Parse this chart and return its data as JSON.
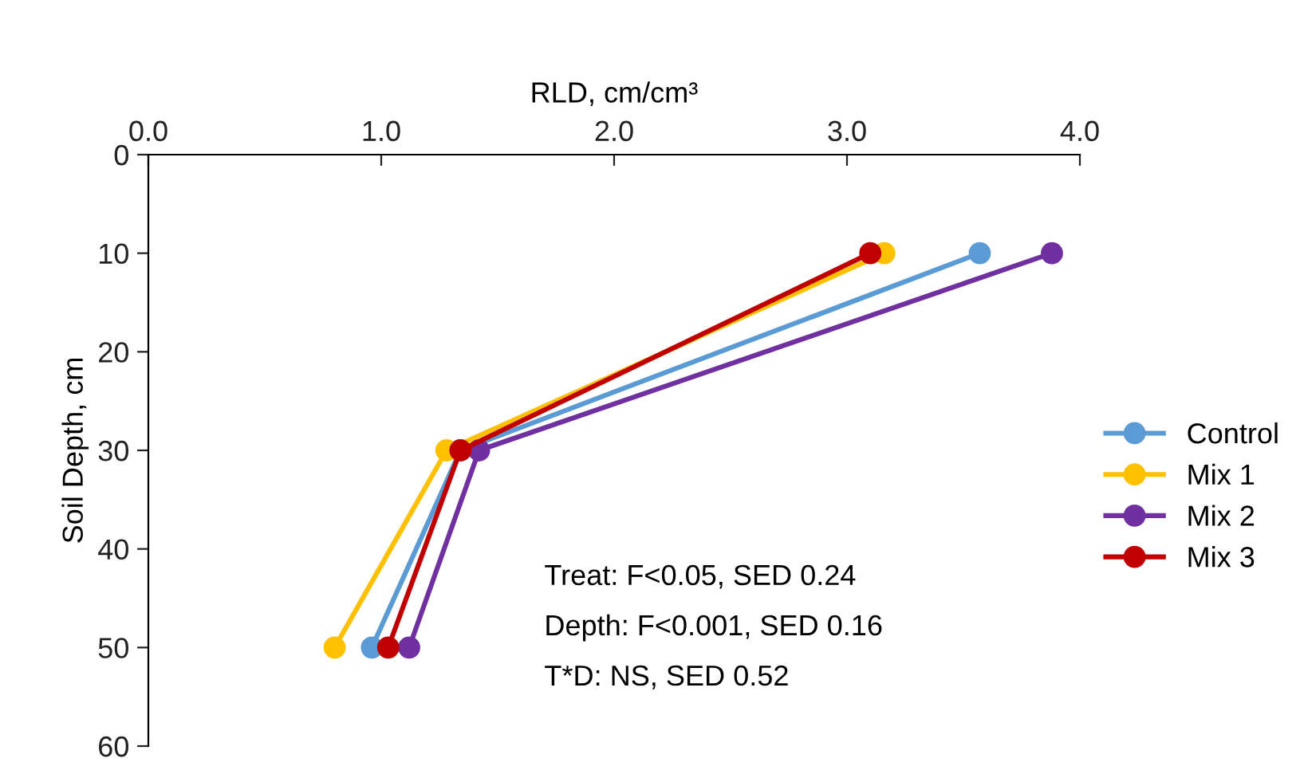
{
  "chart_data": {
    "type": "line",
    "xlabel": "RLD, cm/cm³",
    "ylabel": "Soil Depth, cm",
    "xlim": [
      0,
      4
    ],
    "xticks": [
      {
        "value": 0,
        "label": "0.0"
      },
      {
        "value": 1,
        "label": "1.0"
      },
      {
        "value": 2,
        "label": "2.0"
      },
      {
        "value": 3,
        "label": "3.0"
      },
      {
        "value": 4,
        "label": "4.0"
      }
    ],
    "ylim": [
      60,
      0
    ],
    "yticks": [
      0,
      10,
      20,
      30,
      40,
      50,
      60
    ],
    "series": [
      {
        "name": "Control",
        "color": "#5b9bd5",
        "x": [
          3.57,
          1.34,
          0.96
        ],
        "values": [
          10,
          30,
          50
        ]
      },
      {
        "name": "Mix 1",
        "color": "#ffc000",
        "x": [
          3.16,
          1.28,
          0.8
        ],
        "values": [
          10,
          30,
          50
        ]
      },
      {
        "name": "Mix 2",
        "color": "#7030a0",
        "x": [
          3.88,
          1.42,
          1.12
        ],
        "values": [
          10,
          30,
          50
        ]
      },
      {
        "name": "Mix 3",
        "color": "#c00000",
        "x": [
          3.1,
          1.34,
          1.03
        ],
        "values": [
          10,
          30,
          50
        ]
      }
    ],
    "annotations": [
      "Treat: F<0.05, SED 0.24",
      "Depth: F<0.001, SED 0.16",
      "T*D: NS, SED 0.52"
    ],
    "legend": "right",
    "marker": "circle",
    "line_style": "solid",
    "grid": false
  }
}
